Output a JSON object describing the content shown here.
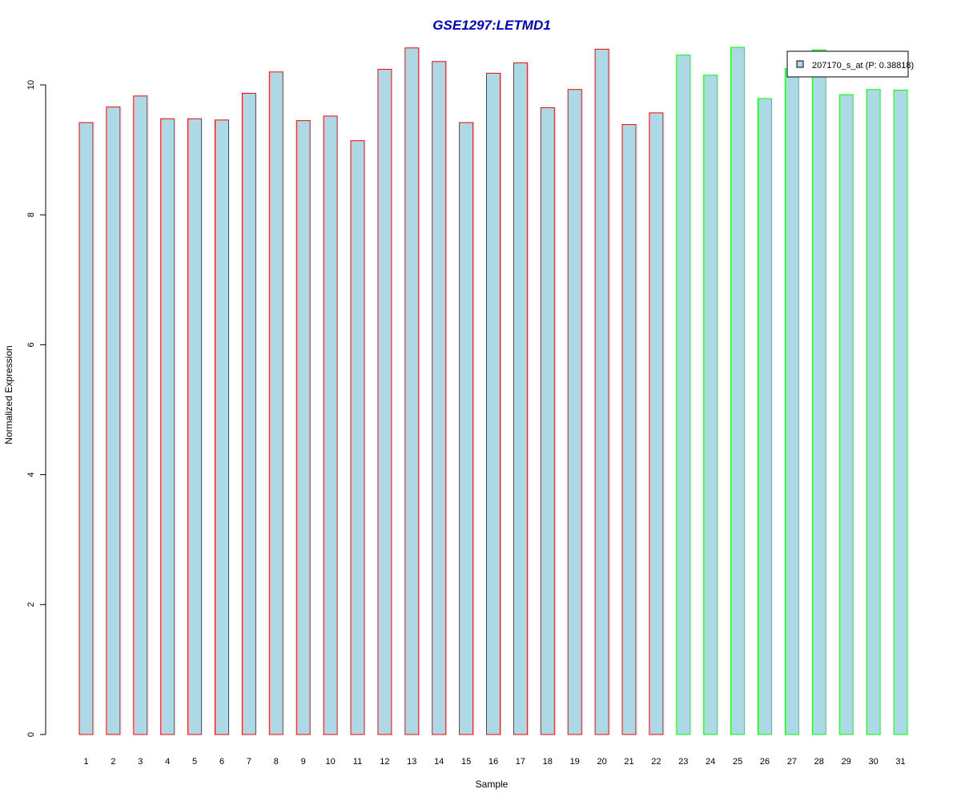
{
  "chart_data": {
    "type": "bar",
    "title": "GSE1297:LETMD1",
    "xlabel": "Sample",
    "ylabel": "Normalized Expression",
    "ylim": [
      0,
      10.6
    ],
    "yticks": [
      0,
      2,
      4,
      6,
      8,
      10
    ],
    "ytick_labels": [
      "0",
      "2",
      "4",
      "6",
      "8",
      "10"
    ],
    "categories": [
      "1",
      "2",
      "3",
      "4",
      "5",
      "6",
      "7",
      "8",
      "9",
      "10",
      "11",
      "12",
      "13",
      "14",
      "15",
      "16",
      "17",
      "18",
      "19",
      "20",
      "21",
      "22",
      "23",
      "24",
      "25",
      "26",
      "27",
      "28",
      "29",
      "30",
      "31"
    ],
    "values": [
      9.42,
      9.66,
      9.83,
      9.48,
      9.48,
      9.46,
      9.87,
      10.2,
      9.45,
      9.52,
      9.14,
      10.24,
      10.57,
      10.36,
      9.42,
      10.18,
      10.34,
      9.65,
      9.93,
      10.55,
      9.39,
      9.57,
      10.46,
      10.15,
      10.58,
      9.79,
      10.25,
      10.54,
      9.85,
      9.93,
      9.92
    ],
    "groups": [
      "red",
      "red",
      "red",
      "red",
      "red",
      "red",
      "red",
      "red",
      "red",
      "red",
      "red",
      "red",
      "red",
      "red",
      "red",
      "red",
      "red",
      "red",
      "red",
      "red",
      "red",
      "red",
      "green",
      "green",
      "green",
      "green",
      "green",
      "green",
      "green",
      "green",
      "green"
    ],
    "legend": {
      "label": "207170_s_at (P: 0.38818)",
      "position": "top-right"
    },
    "grid": false,
    "colors": {
      "bar_fill": "#add8e6",
      "red_border": "#ff0000",
      "green_border": "#00ff00",
      "title": "#0000cd",
      "axis": "#000000"
    }
  }
}
